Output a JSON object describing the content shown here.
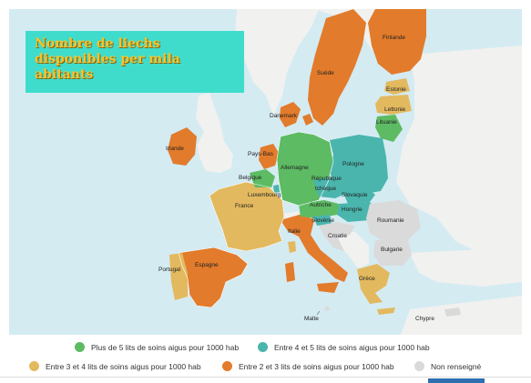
{
  "title": "Nombre de liechs disponibles per mila abitants",
  "colors": {
    "green": "#5dbb63",
    "teal": "#4ab5ad",
    "yellow": "#e3b95f",
    "orange": "#e27b2b",
    "grey": "#dadada",
    "sea": "#d4ebf2",
    "title_bg": "#3fdccb",
    "title_text": "#f6c32a"
  },
  "countries": {
    "finlande": "Finlande",
    "suede": "Suède",
    "estonie": "Estonie",
    "lettonie": "Lettonie",
    "lituanie": "Lituanie",
    "danemark": "Danemark",
    "irlande": "Irlande",
    "pays_bas": "Pays-Bas",
    "belgique": "Belgique",
    "luxembourg": "Luxembourg",
    "allemagne": "Allemagne",
    "pologne": "Pologne",
    "republique": "République",
    "tcheque": "tchèque",
    "slovaquie": "Slovaquie",
    "autriche": "Autriche",
    "hongrie": "Hongrie",
    "slovenie": "Slovénie",
    "croatie": "Croatie",
    "roumanie": "Roumanie",
    "bulgarie": "Bulgarie",
    "france": "France",
    "italie": "Italie",
    "espagne": "Espagne",
    "portugal": "Portugal",
    "grece": "Grèce",
    "malte": "Malte",
    "chypre": "Chypre"
  },
  "legend": {
    "green": "Plus de 5 lits de soins aigus pour 1000 hab",
    "teal": "Entre 4 et 5 lits de soins aigus pour 1000 hab",
    "yellow": "Entre 3 et 4 lits de soins aigus pour 1000 hab",
    "orange": "Entre 2 et 3 lits de soins aigus pour 1000 hab",
    "grey": "Non renseigné"
  }
}
